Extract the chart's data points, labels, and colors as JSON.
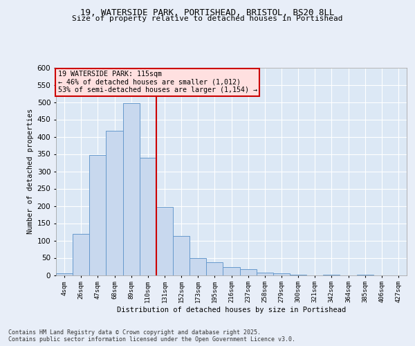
{
  "title_line1": "19, WATERSIDE PARK, PORTISHEAD, BRISTOL, BS20 8LL",
  "title_line2": "Size of property relative to detached houses in Portishead",
  "xlabel": "Distribution of detached houses by size in Portishead",
  "ylabel": "Number of detached properties",
  "bar_labels": [
    "4sqm",
    "26sqm",
    "47sqm",
    "68sqm",
    "89sqm",
    "110sqm",
    "131sqm",
    "152sqm",
    "173sqm",
    "195sqm",
    "216sqm",
    "237sqm",
    "258sqm",
    "279sqm",
    "300sqm",
    "321sqm",
    "342sqm",
    "364sqm",
    "385sqm",
    "406sqm",
    "427sqm"
  ],
  "bar_values": [
    5,
    120,
    348,
    418,
    497,
    340,
    198,
    113,
    50,
    37,
    23,
    18,
    8,
    6,
    1,
    0,
    2,
    0,
    1,
    0,
    0
  ],
  "bar_color": "#c8d8ee",
  "bar_edge_color": "#6699cc",
  "ref_line_color": "#cc0000",
  "ylim": [
    0,
    600
  ],
  "yticks": [
    0,
    50,
    100,
    150,
    200,
    250,
    300,
    350,
    400,
    450,
    500,
    550,
    600
  ],
  "annotation_text": "19 WATERSIDE PARK: 115sqm\n← 46% of detached houses are smaller (1,012)\n53% of semi-detached houses are larger (1,154) →",
  "annotation_box_color": "#ffe0e0",
  "annotation_border_color": "#cc0000",
  "footnote": "Contains HM Land Registry data © Crown copyright and database right 2025.\nContains public sector information licensed under the Open Government Licence v3.0.",
  "bg_color": "#e8eef8",
  "plot_bg_color": "#dce8f5",
  "grid_color": "#ffffff"
}
